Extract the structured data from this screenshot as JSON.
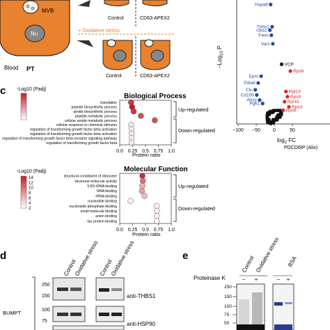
{
  "panel_a": {
    "mvb_label": "MVB",
    "nu_label": "Nu",
    "blood_label": "Blood",
    "pt_label": "PT",
    "stress_label": "+ Oxidative stress",
    "control_label": "Control",
    "cd63_label": "CD63-APEX2",
    "control_label_2": "Control",
    "cd63_label_2": "CD63-APEX2"
  },
  "panel_b": {
    "ylabel": "−Log",
    "ylabel_sub": "10",
    "ylabel_end": " P",
    "xlabel": "log",
    "xlabel_sub": "2",
    "xlabel_end": " FC",
    "xticks": [
      "−100",
      "−50",
      "0",
      "50"
    ],
    "genes_blue": [
      "Hspa8",
      "Thbs1",
      "Uba1",
      "Fasn",
      "Vars",
      "Eprs",
      "Pdia6",
      "Clu",
      "Cd109",
      "Ahcy",
      "Pgk1"
    ],
    "genes_black": [
      "VCP"
    ],
    "genes_red": [
      "Rps6",
      "Rpl13",
      "Rps9",
      "Rpl15",
      "Rps3",
      "Rps8"
    ],
    "bottom_label": "PDCD6IP (Alix)",
    "colors": {
      "blue": "#2b4aa0",
      "red": "#d62728",
      "gray": "#222222"
    },
    "chart_data": {
      "type": "scatter",
      "xlabel": "log2 FC",
      "ylabel": "−Log10 P",
      "points_blue": [
        [
          -5,
          70
        ],
        [
          -3,
          57
        ],
        [
          -6,
          55
        ],
        [
          -4,
          52
        ],
        [
          -2,
          47
        ],
        [
          -18,
          28
        ],
        [
          -22,
          24
        ],
        [
          -26,
          20
        ],
        [
          -24,
          17
        ],
        [
          -20,
          14
        ],
        [
          -16,
          12
        ]
      ],
      "points_black": [
        [
          10,
          35
        ]
      ],
      "points_red": [
        [
          22,
          31
        ],
        [
          16,
          19
        ],
        [
          18,
          16
        ],
        [
          14,
          13
        ],
        [
          20,
          10
        ],
        [
          12,
          8
        ]
      ]
    }
  },
  "panel_c": {
    "letter": "c",
    "bp": {
      "title": "Biological Process",
      "legend_title": "-Log10 (Padj)",
      "terms": [
        "translation",
        "peptide biosynthetic process",
        "amide biosynthetic process",
        "peptide metabolic process",
        "cellular amide metabolic process",
        "cellular response to chemical stimulus",
        "regulation of transforming growth factor beta activation",
        "regulation of transforming growth factor beta activation",
        "regulation of transforming growth factor beta receptor signaling pathway",
        "regulation of transforming growth factor beta"
      ],
      "up_label": "Up-regulated",
      "down_label": "Down-regulated",
      "xlabel": "Protein ratio",
      "xticks": [
        "0.0",
        "0.25",
        "0.5",
        "0.75",
        "1.0"
      ],
      "chart_data": {
        "type": "scatter",
        "x": [
          0.22,
          0.24,
          0.27,
          0.41,
          0.68,
          0.22,
          0.23,
          0.23,
          0.23,
          0.23
        ],
        "sig": [
          8,
          9,
          8,
          7,
          7,
          1,
          1,
          1,
          1,
          1
        ]
      }
    },
    "mf": {
      "title": "Molecular Function",
      "legend_title": "-Log10 (Padj)",
      "legend_ticks": [
        "14",
        "12",
        "10",
        "8",
        "6",
        "4",
        "2"
      ],
      "terms": [
        "structural constituent of ribosome",
        "structural molecule activity",
        "5.8S rRNA binding",
        "RNA binding",
        "rRNA binding",
        "nucleotide binding",
        "nucleoside phosphate binding",
        "small molecule binding",
        "anion binding",
        "tau protein binding"
      ],
      "up_label": "Up-regulated",
      "down_label": "Down-regulated",
      "xlabel": "Protein ratio",
      "xticks": [
        "0.0",
        "0.25",
        "0.5",
        "0.75",
        "1.0"
      ],
      "chart_data": {
        "type": "scatter",
        "x": [
          0.44,
          0.45,
          0.44,
          0.43,
          0.48,
          0.21,
          0.72,
          0.72,
          0.72,
          0.72
        ],
        "sig": [
          13,
          9,
          5,
          6,
          4,
          1,
          1,
          1,
          1,
          1
        ]
      }
    }
  },
  "panel_d": {
    "letter": "d",
    "lane_labels": [
      "Control",
      "Oxidative stress",
      "Control",
      "Oxidative stress"
    ],
    "marker_top": [
      "250",
      "150"
    ],
    "marker_bottom": [
      "100",
      "75"
    ],
    "cell_label": "BUMPT",
    "antibody_1": "anti-THBS1",
    "antibody_2": "anti-HSP90"
  },
  "panel_e": {
    "letter": "e",
    "lane_labels": [
      "Control",
      "Oxidative stress",
      "BSA"
    ],
    "protk_label": "Proteinase K",
    "signs": [
      "−",
      "+",
      "−",
      "+",
      "−",
      "+"
    ],
    "markers": [
      "250",
      "150",
      "100",
      "75",
      "50"
    ]
  }
}
